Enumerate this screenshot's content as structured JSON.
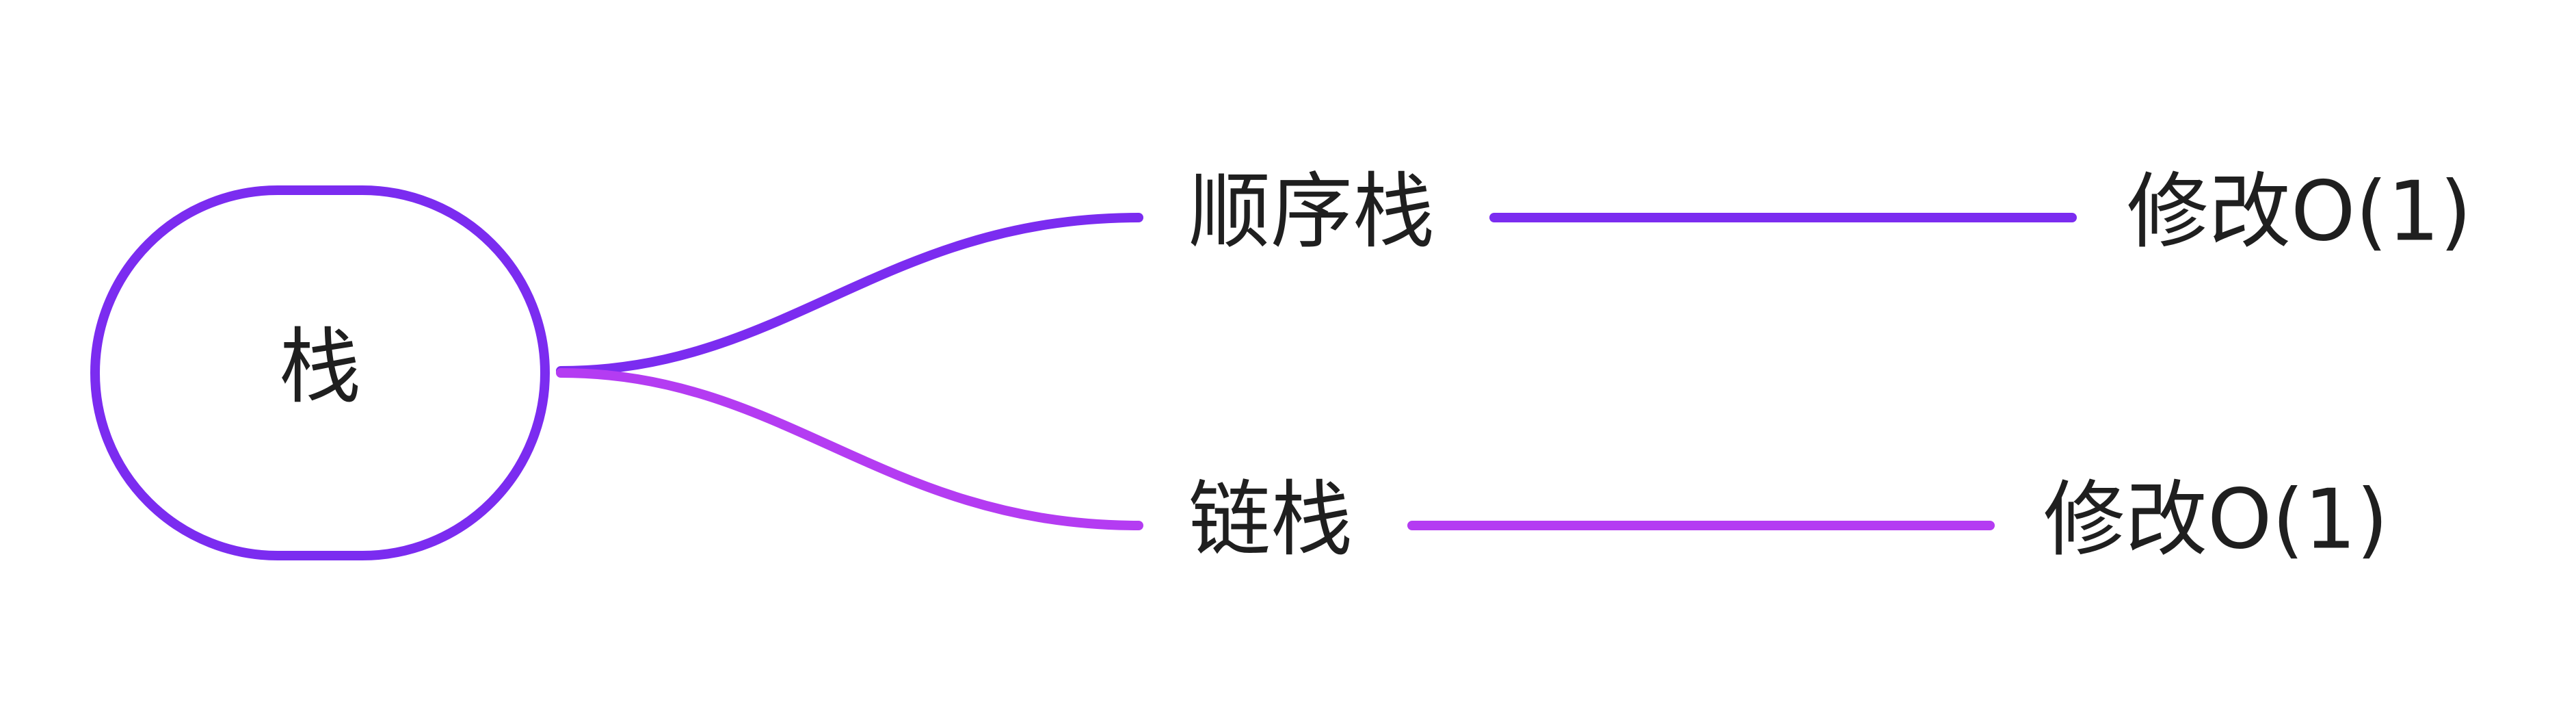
{
  "diagram": {
    "colors": {
      "root_border": "#7b2cf0",
      "branch_top": "#7b2cf0",
      "branch_bottom": "#b43cf2",
      "text": "#1f1f1f",
      "background": "#ffffff"
    },
    "root": {
      "label": "栈"
    },
    "branches": [
      {
        "label": "顺序栈",
        "leaf": "修改O(1)"
      },
      {
        "label": "链栈",
        "leaf": "修改O(1)"
      }
    ]
  }
}
